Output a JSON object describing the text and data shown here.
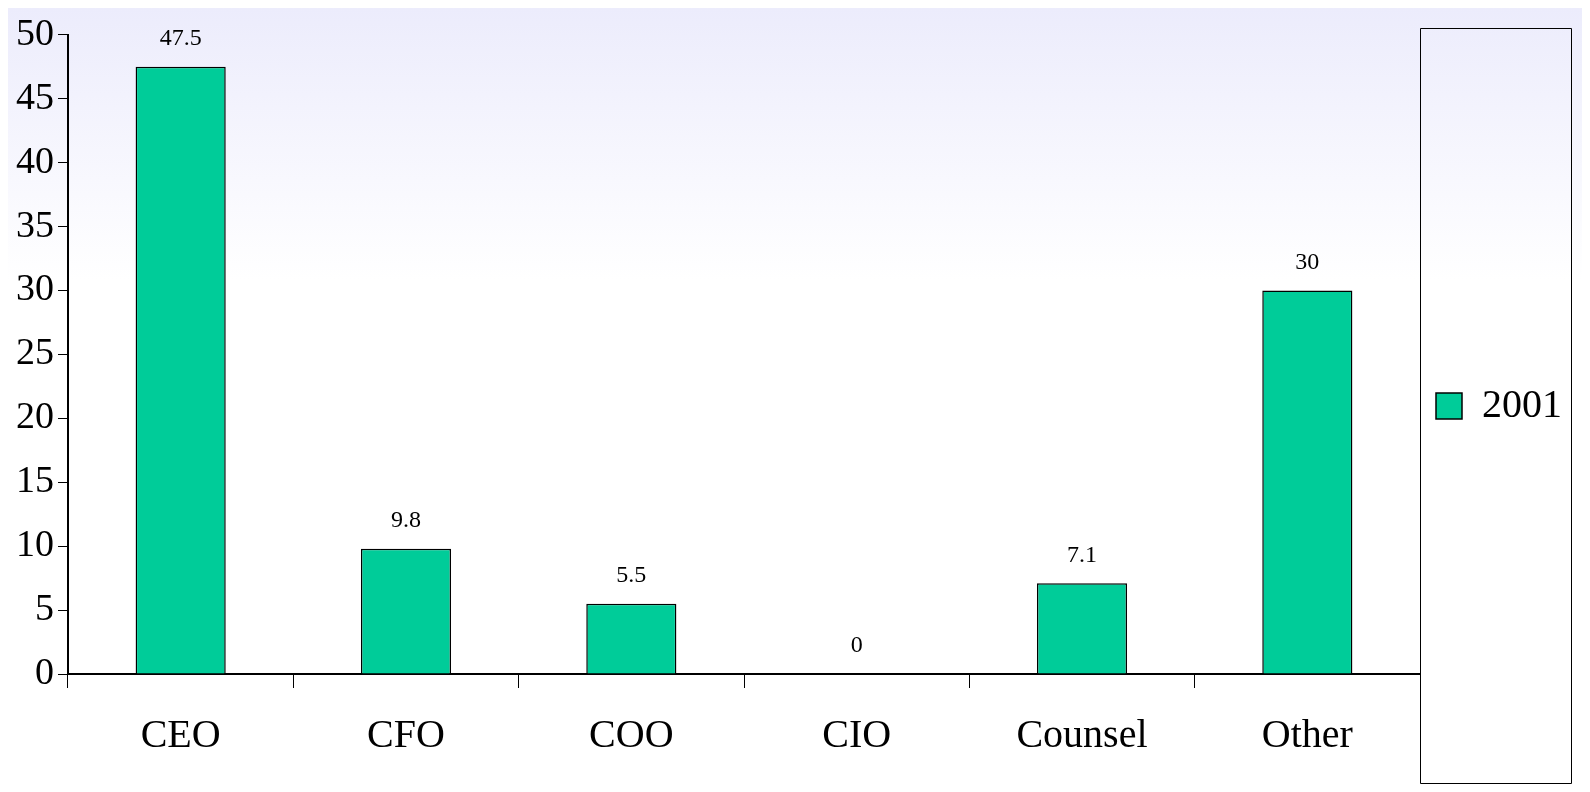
{
  "chart_data": {
    "type": "bar",
    "categories": [
      "CEO",
      "CFO",
      "COO",
      "CIO",
      "Counsel",
      "Other"
    ],
    "series": [
      {
        "name": "2001",
        "color": "#00cc99",
        "values": [
          47.5,
          9.8,
          5.5,
          0,
          7.1,
          30
        ]
      }
    ],
    "ylim": [
      0,
      50
    ],
    "yticks": [
      0,
      5,
      10,
      15,
      20,
      25,
      30,
      35,
      40,
      45,
      50
    ],
    "data_labels": true,
    "legend": "right",
    "grid": false
  }
}
